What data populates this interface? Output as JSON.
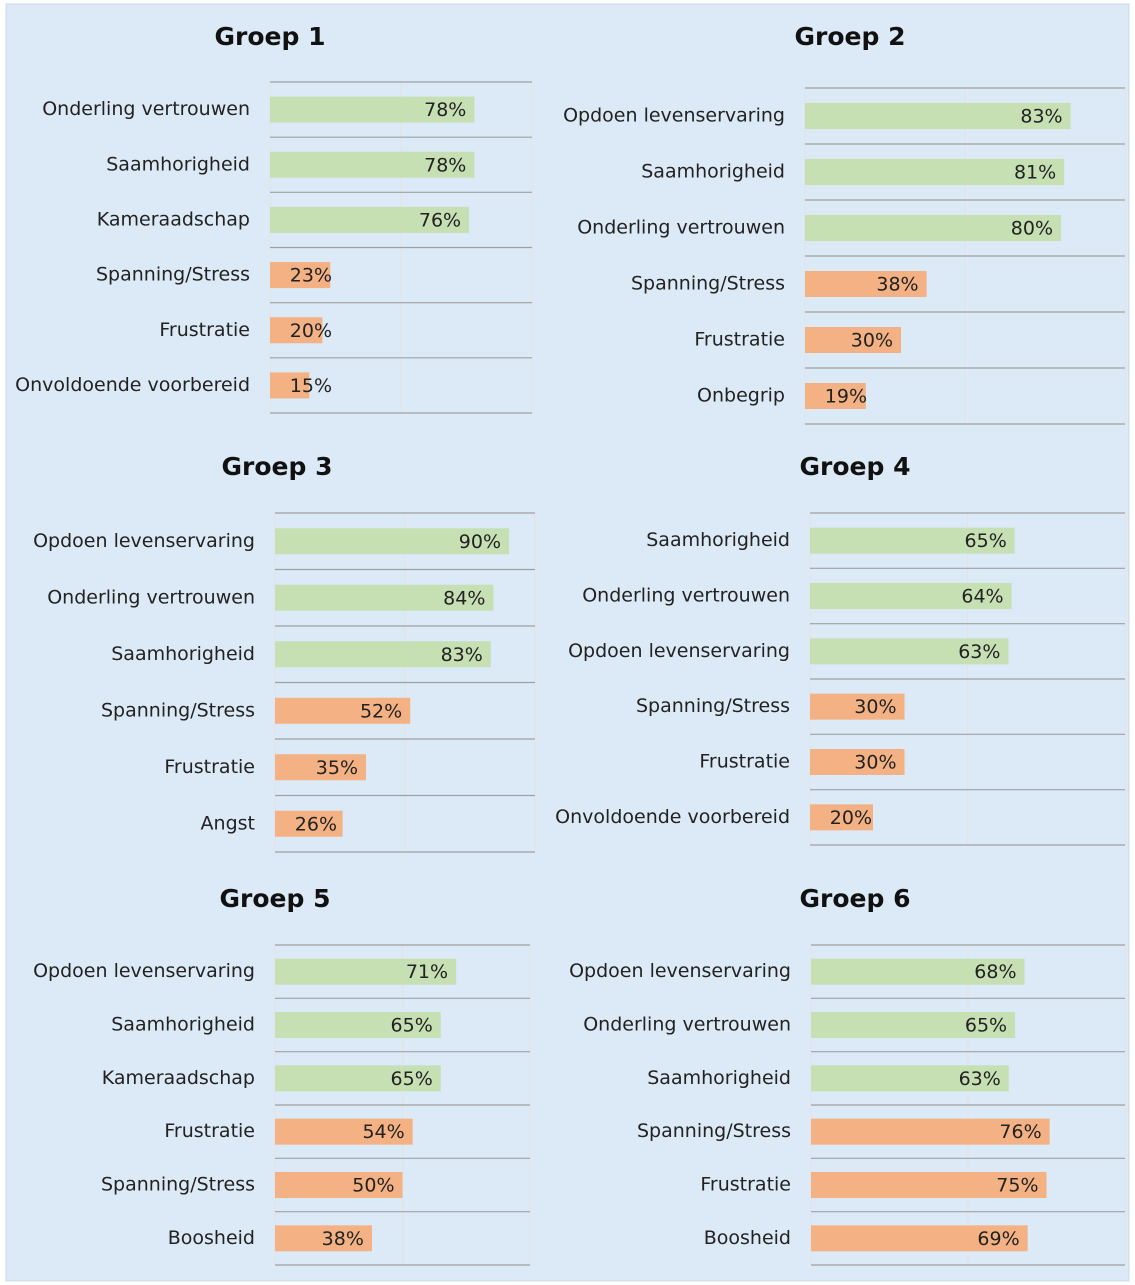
{
  "chart_data": [
    {
      "type": "hbar",
      "title": "Groep 1",
      "categories": [
        "Onderling vertrouwen",
        "Saamhorigheid",
        "Kameraadschap",
        "Spanning/Stress",
        "Frustratie",
        "Onvoldoende voorbereid"
      ],
      "values": [
        78,
        78,
        76,
        23,
        20,
        15
      ],
      "value_labels": [
        "78%",
        "78%",
        "76%",
        "23%",
        "20%",
        "15%"
      ],
      "colors": [
        "#c6e0b4",
        "#c6e0b4",
        "#c6e0b4",
        "#f4b183",
        "#f4b183",
        "#f4b183"
      ],
      "xlim": [
        0,
        100
      ],
      "xticks": [
        0,
        50,
        100
      ],
      "grid": true
    },
    {
      "type": "hbar",
      "title": "Groep 2",
      "categories": [
        "Opdoen levenservaring",
        "Saamhorigheid",
        "Onderling vertrouwen",
        "Spanning/Stress",
        "Frustratie",
        "Onbegrip"
      ],
      "values": [
        83,
        81,
        80,
        38,
        30,
        19
      ],
      "value_labels": [
        "83%",
        "81%",
        "80%",
        "38%",
        "30%",
        "19%"
      ],
      "colors": [
        "#c6e0b4",
        "#c6e0b4",
        "#c6e0b4",
        "#f4b183",
        "#f4b183",
        "#f4b183"
      ],
      "xlim": [
        0,
        100
      ],
      "xticks": [
        0,
        50,
        100
      ],
      "grid": true
    },
    {
      "type": "hbar",
      "title": "Groep 3",
      "categories": [
        "Opdoen levenservaring",
        "Onderling vertrouwen",
        "Saamhorigheid",
        "Spanning/Stress",
        "Frustratie",
        "Angst"
      ],
      "values": [
        90,
        84,
        83,
        52,
        35,
        26
      ],
      "value_labels": [
        "90%",
        "84%",
        "83%",
        "52%",
        "35%",
        "26%"
      ],
      "colors": [
        "#c6e0b4",
        "#c6e0b4",
        "#c6e0b4",
        "#f4b183",
        "#f4b183",
        "#f4b183"
      ],
      "xlim": [
        0,
        100
      ],
      "xticks": [
        0,
        50,
        100
      ],
      "grid": true
    },
    {
      "type": "hbar",
      "title": "Groep 4",
      "categories": [
        "Saamhorigheid",
        "Onderling vertrouwen",
        "Opdoen levenservaring",
        "Spanning/Stress",
        "Frustratie",
        "Onvoldoende voorbereid"
      ],
      "values": [
        65,
        64,
        63,
        30,
        30,
        20
      ],
      "value_labels": [
        "65%",
        "64%",
        "63%",
        "30%",
        "30%",
        "20%"
      ],
      "colors": [
        "#c6e0b4",
        "#c6e0b4",
        "#c6e0b4",
        "#f4b183",
        "#f4b183",
        "#f4b183"
      ],
      "xlim": [
        0,
        100
      ],
      "xticks": [
        0,
        50,
        100
      ],
      "grid": true
    },
    {
      "type": "hbar",
      "title": "Groep 5",
      "categories": [
        "Opdoen levenservaring",
        "Saamhorigheid",
        "Kameraadschap",
        "Frustratie",
        "Spanning/Stress",
        "Boosheid"
      ],
      "values": [
        71,
        65,
        65,
        54,
        50,
        38
      ],
      "value_labels": [
        "71%",
        "65%",
        "65%",
        "54%",
        "50%",
        "38%"
      ],
      "colors": [
        "#c6e0b4",
        "#c6e0b4",
        "#c6e0b4",
        "#f4b183",
        "#f4b183",
        "#f4b183"
      ],
      "xlim": [
        0,
        100
      ],
      "xticks": [
        0,
        50,
        100
      ],
      "grid": true
    },
    {
      "type": "hbar",
      "title": "Groep 6",
      "categories": [
        "Opdoen levenservaring",
        "Onderling vertrouwen",
        "Saamhorigheid",
        "Spanning/Stress",
        "Frustratie",
        "Boosheid"
      ],
      "values": [
        68,
        65,
        63,
        76,
        75,
        69
      ],
      "value_labels": [
        "68%",
        "65%",
        "63%",
        "76%",
        "75%",
        "69%"
      ],
      "colors": [
        "#c6e0b4",
        "#c6e0b4",
        "#c6e0b4",
        "#f4b183",
        "#f4b183",
        "#f4b183"
      ],
      "xlim": [
        0,
        100
      ],
      "xticks": [
        0,
        50,
        100
      ],
      "grid": true
    }
  ]
}
